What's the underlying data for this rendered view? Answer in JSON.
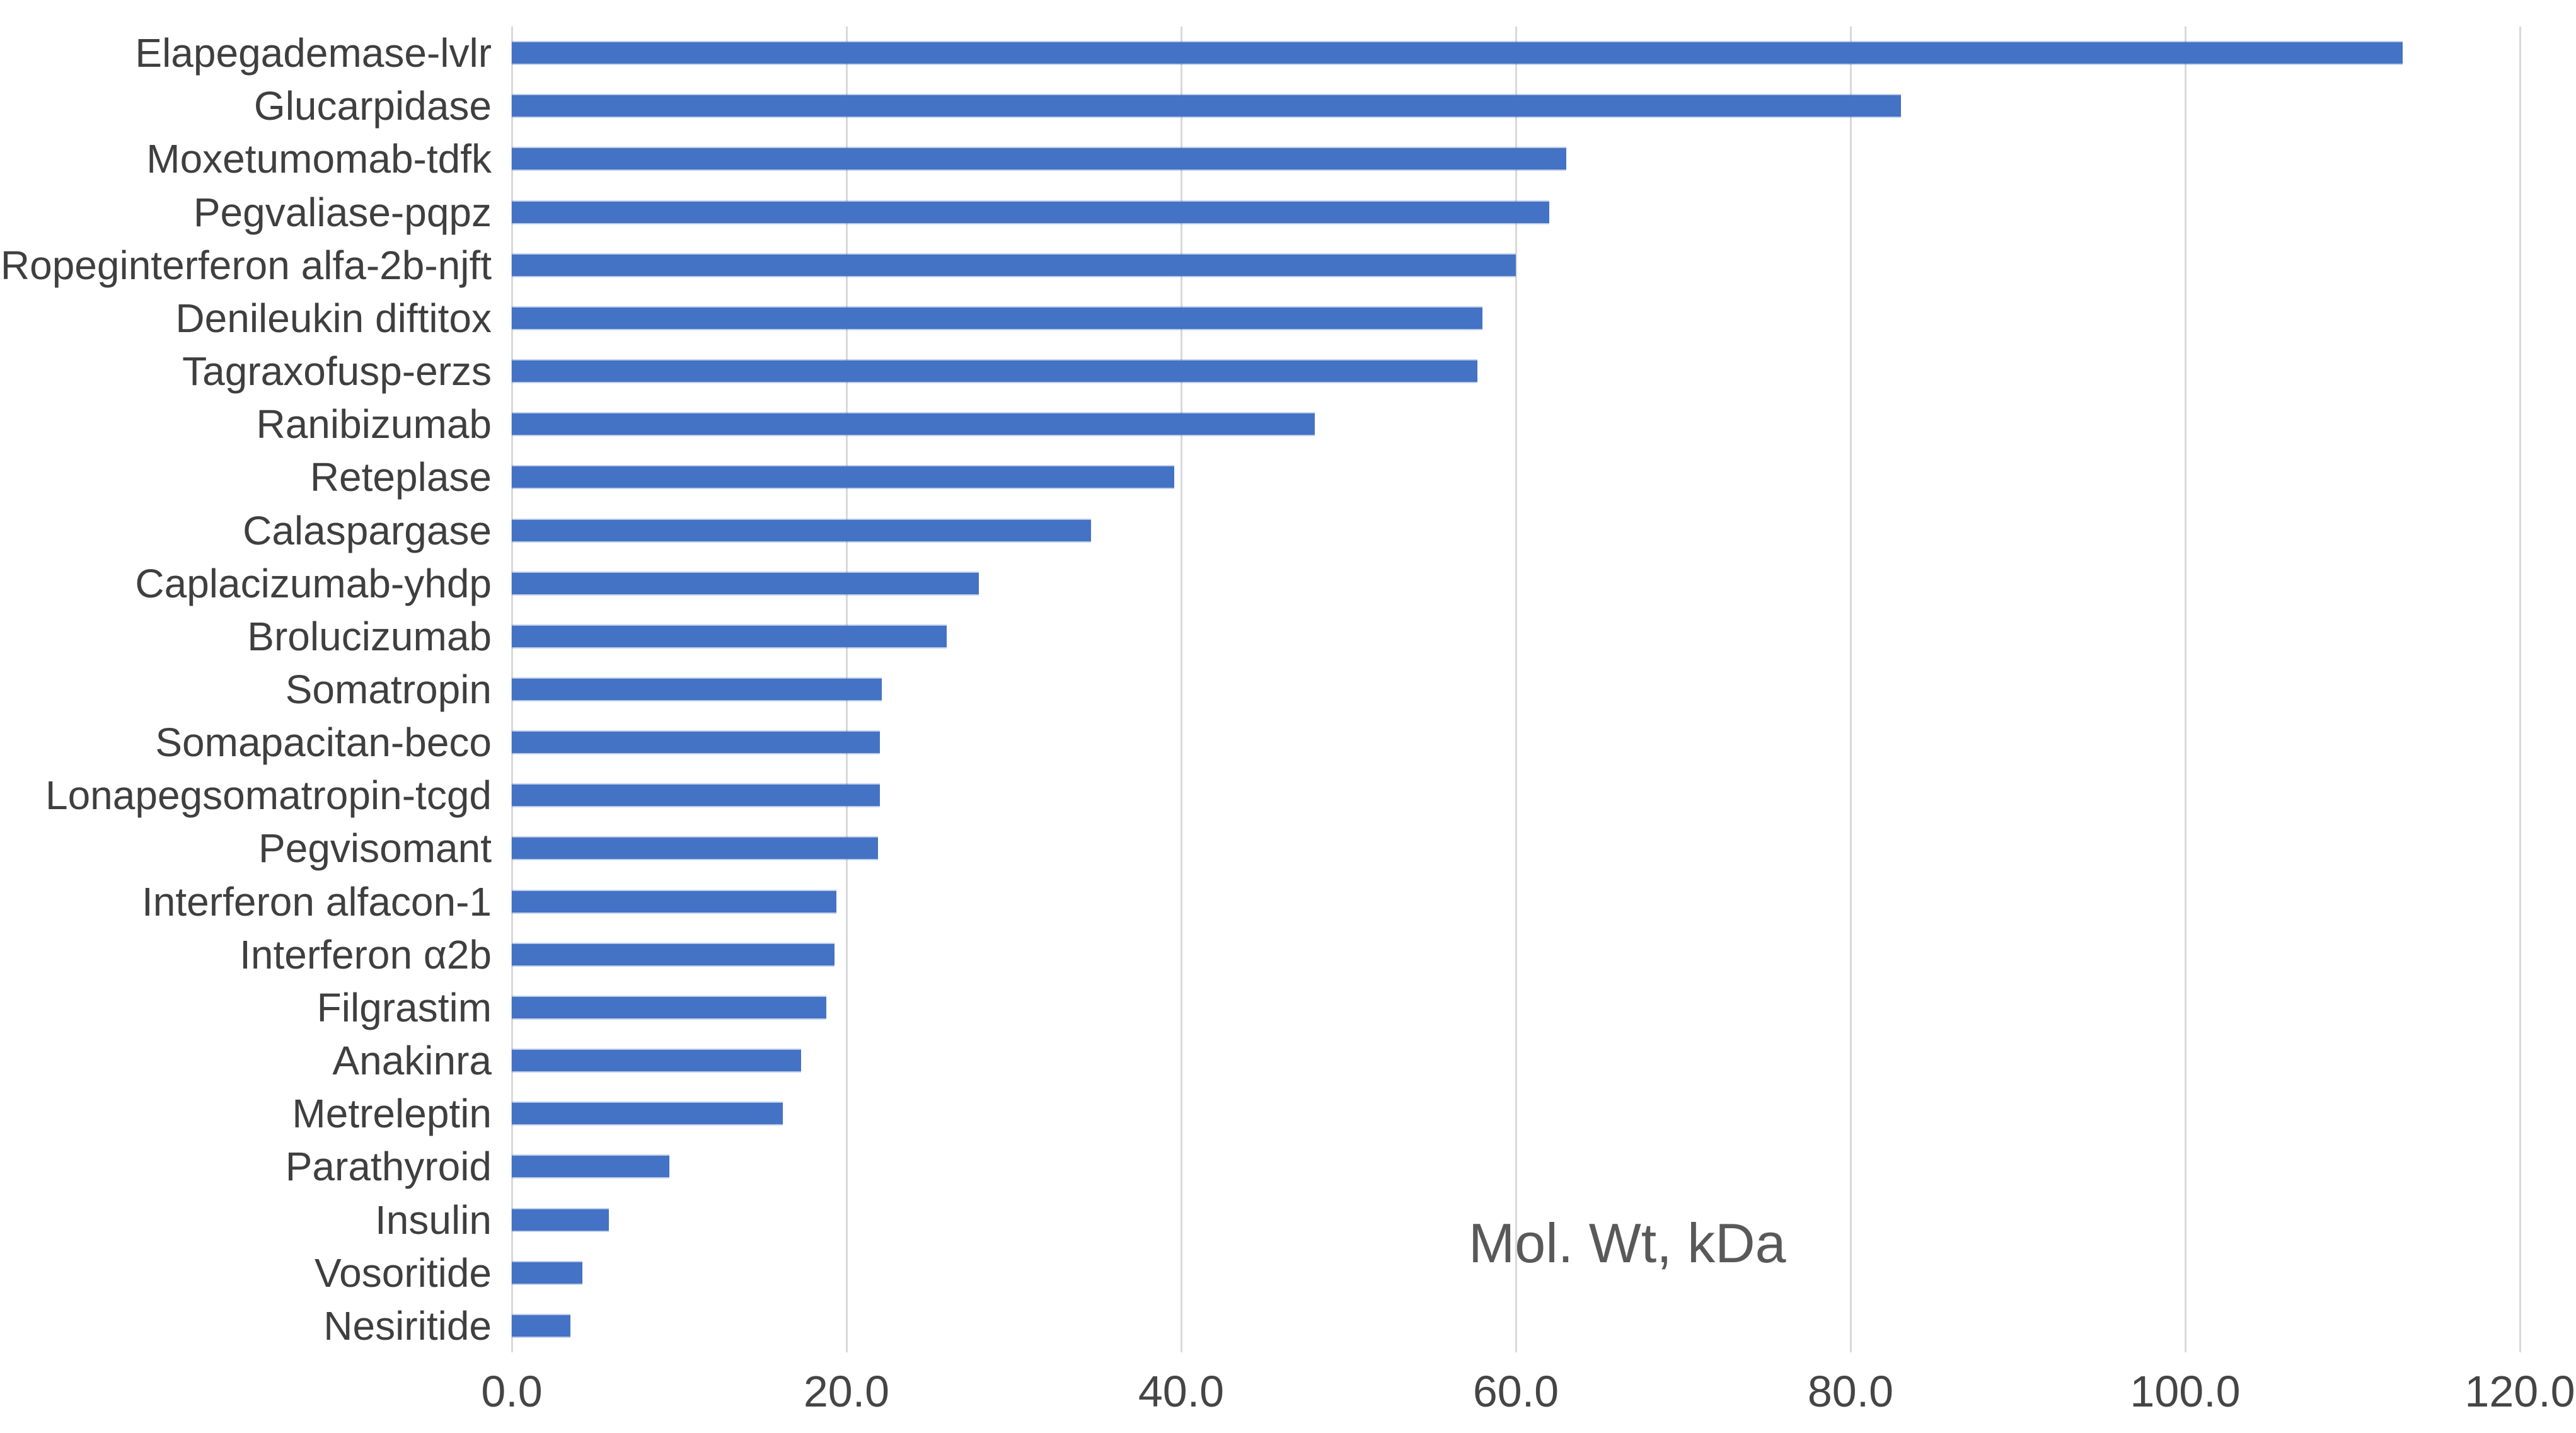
{
  "chart_data": {
    "type": "bar",
    "orientation": "horizontal",
    "title": "",
    "annotation": "Mol. Wt, kDa",
    "categories": [
      "Elapegademase-lvlr",
      "Glucarpidase",
      "Moxetumomab-tdfk",
      "Pegvaliase-pqpz",
      "Ropeginterferon alfa-2b-njft",
      "Denileukin diftitox",
      "Tagraxofusp-erzs",
      "Ranibizumab",
      "Reteplase",
      "Calaspargase",
      "Caplacizumab-yhdp",
      "Brolucizumab",
      "Somatropin",
      "Somapacitan-beco",
      "Lonapegsomatropin-tcgd",
      "Pegvisomant",
      "Interferon alfacon-1",
      "Interferon α2b",
      "Filgrastim",
      "Anakinra",
      "Metreleptin",
      "Parathyroid",
      "Insulin",
      "Vosoritide",
      "Nesiritide"
    ],
    "values": [
      113.0,
      83.0,
      63.0,
      62.0,
      60.0,
      58.0,
      57.7,
      48.0,
      39.6,
      34.6,
      27.9,
      26.0,
      22.1,
      22.0,
      22.0,
      21.9,
      19.4,
      19.3,
      18.8,
      17.3,
      16.2,
      9.4,
      5.8,
      4.2,
      3.5
    ],
    "xlabel": "",
    "ylabel": "",
    "x_axis": {
      "min": 0,
      "max": 120,
      "tick_interval": 20,
      "tick_labels": [
        "0.0",
        "20.0",
        "40.0",
        "60.0",
        "80.0",
        "100.0",
        "120.0"
      ]
    },
    "grid": true,
    "legend_position": "none",
    "colors": {
      "bar": "#4472c4",
      "gridline": "#d9d9d9",
      "category_label": "#3f3f3f",
      "tick_label": "#454545",
      "annotation": "#595959",
      "background": "#ffffff"
    }
  }
}
